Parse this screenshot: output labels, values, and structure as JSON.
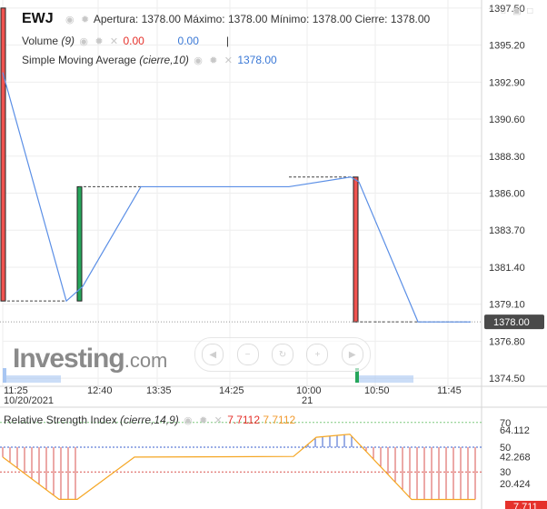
{
  "header": {
    "symbol": "EWJ",
    "open_label": "Apertura:",
    "open": "1378.00",
    "high_label": "Máximo:",
    "high": "1378.00",
    "low_label": "Mínimo:",
    "low": "1378.00",
    "close_label": "Cierre:",
    "close": "1378.00"
  },
  "volume_legend": {
    "label": "Volume",
    "param": "(9)",
    "value1": "0.00",
    "value2": "0.00",
    "sep": "|"
  },
  "sma_legend": {
    "label": "Simple Moving Average",
    "param": "(cierre,10)",
    "value": "1378.00"
  },
  "rsi_legend": {
    "label": "Relative Strength Index",
    "param": "(cierre,14,9)",
    "value1": "7.7112",
    "value2": "7.7112"
  },
  "watermark": {
    "brand": "Investing",
    "domain": ".com"
  },
  "icons": {
    "legend_actions": [
      "eye-icon",
      "gear-icon",
      "close-icon"
    ],
    "corner": [
      "chevron-up-icon",
      "home-icon",
      "lock-icon",
      "maximize-icon"
    ],
    "navigation": [
      "scroll-left-icon",
      "zoom-out-icon",
      "zoom-reset-icon",
      "zoom-in-icon",
      "scroll-right-icon"
    ]
  },
  "colors": {
    "up": "#26a65b",
    "down": "#ef5350",
    "sma": "#5b8fe6",
    "rsi": "#f5a623",
    "volume": "#a8c6f2",
    "last_price_badge": "#4a4a4a",
    "rsi_value_badge": "#e5312b"
  },
  "chart_data": [
    {
      "type": "candlestick",
      "xlabels": [
        {
          "t": 0,
          "label": "11:25",
          "sub": "10/20/2021"
        },
        {
          "t": 105,
          "label": "12:40"
        },
        {
          "t": 170,
          "label": "13:35"
        },
        {
          "t": 250,
          "label": "14:25"
        },
        {
          "t": 335,
          "label": "10:00",
          "sub": "21"
        },
        {
          "t": 410,
          "label": "10:50"
        },
        {
          "t": 490,
          "label": "11:45"
        }
      ],
      "y_ticks": [
        1397.5,
        1395.2,
        1392.9,
        1390.6,
        1388.3,
        1386.0,
        1383.7,
        1381.4,
        1379.1,
        1376.8,
        1374.5
      ],
      "ylim": [
        1374.0,
        1398.0
      ],
      "last_price": "1378.00",
      "candles": [
        {
          "t": 0,
          "open": 1397.5,
          "high": 1397.5,
          "low": 1379.3,
          "close": 1379.3,
          "dir": "down"
        },
        {
          "t": 84,
          "open": 1379.3,
          "high": 1386.4,
          "low": 1379.3,
          "close": 1386.4,
          "dir": "up"
        },
        {
          "t": 388,
          "open": 1387.0,
          "high": 1387.0,
          "low": 1378.0,
          "close": 1378.0,
          "dir": "down"
        }
      ],
      "sma": [
        {
          "t": 0,
          "v": 1393.5
        },
        {
          "t": 70,
          "v": 1379.3
        },
        {
          "t": 88,
          "v": 1380.2
        },
        {
          "t": 152,
          "v": 1386.4
        },
        {
          "t": 315,
          "v": 1386.4
        },
        {
          "t": 383,
          "v": 1387.0
        },
        {
          "t": 392,
          "v": 1386.7
        },
        {
          "t": 457,
          "v": 1378.0
        },
        {
          "t": 515,
          "v": 1378.0
        }
      ],
      "volume": [
        {
          "t": 0,
          "v": 1.0,
          "dir": "down"
        },
        {
          "t": 388,
          "v": 1.0,
          "dir": "up"
        }
      ]
    },
    {
      "type": "line",
      "title": "Relative Strength Index",
      "ylim": [
        0,
        75
      ],
      "y_ticks": [
        70,
        64.112,
        50,
        42.268,
        30,
        20.424
      ],
      "levels": [
        70,
        50,
        30
      ],
      "last_value": "7.711",
      "rsi": [
        {
          "t": 0,
          "v": 42.0
        },
        {
          "t": 62,
          "v": 7.8
        },
        {
          "t": 82,
          "v": 7.8
        },
        {
          "t": 145,
          "v": 42.0
        },
        {
          "t": 320,
          "v": 42.5
        },
        {
          "t": 345,
          "v": 58.0
        },
        {
          "t": 382,
          "v": 60.5
        },
        {
          "t": 450,
          "v": 7.7
        },
        {
          "t": 520,
          "v": 7.7
        }
      ]
    }
  ]
}
